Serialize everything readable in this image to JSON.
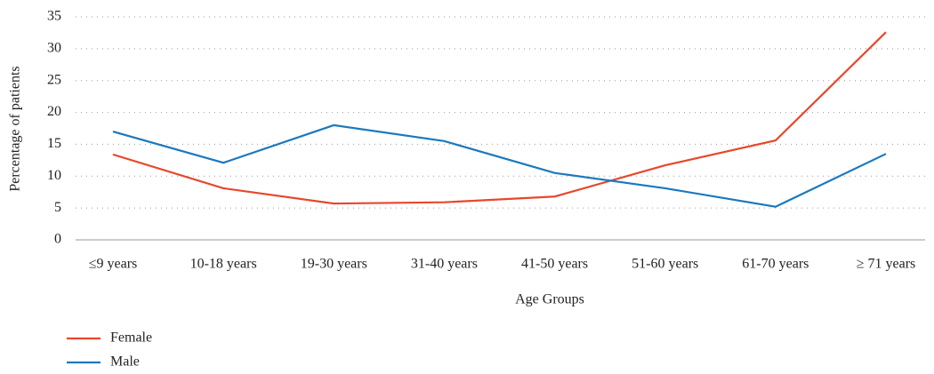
{
  "chart_data": {
    "type": "line",
    "x_label": "Age Groups",
    "y_label": "Percentage of patients",
    "categories": [
      "≤9 years",
      "10-18 years",
      "19-30 years",
      "31-40 years",
      "41-50 years",
      "51-60 years",
      "61-70 years",
      "≥ 71 years"
    ],
    "series": [
      {
        "name": "Female",
        "color": "#e8472b",
        "values": [
          13.4,
          8.1,
          5.7,
          5.9,
          6.8,
          11.7,
          15.6,
          32.6
        ]
      },
      {
        "name": "Male",
        "color": "#1b79be",
        "values": [
          17.0,
          12.1,
          18.0,
          15.5,
          10.5,
          8.1,
          5.2,
          13.5
        ]
      }
    ],
    "ylim": [
      0,
      35
    ],
    "yticks": [
      0,
      5,
      10,
      15,
      20,
      25,
      30,
      35
    ],
    "grid": true,
    "legend": "bottom-left"
  }
}
